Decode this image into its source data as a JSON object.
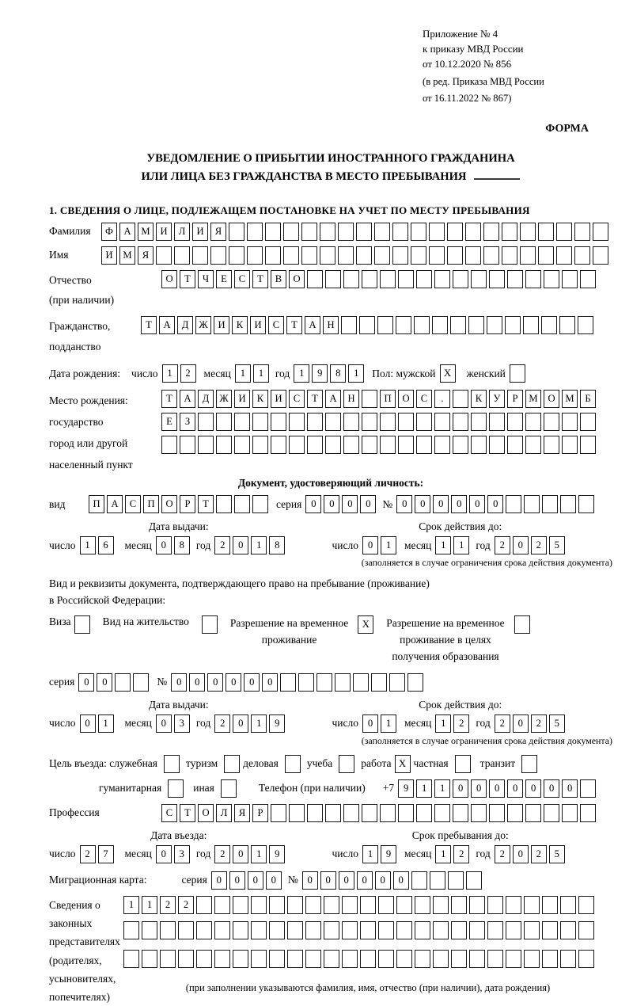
{
  "header": {
    "appendix_lines": [
      "Приложение № 4",
      "к приказу МВД России",
      "от 10.12.2020 № 856"
    ],
    "edition_lines": [
      "(в ред. Приказа МВД России",
      "от 16.11.2022 № 867)"
    ],
    "form_label": "ФОРМА"
  },
  "title": {
    "line1": "УВЕДОМЛЕНИЕ О ПРИБЫТИИ ИНОСТРАННОГО ГРАЖДАНИНА",
    "line2": "ИЛИ ЛИЦА БЕЗ ГРАЖДАНСТВА В МЕСТО ПРЕБЫВАНИЯ"
  },
  "section1_heading": "1. СВЕДЕНИЯ О ЛИЦЕ, ПОДЛЕЖАЩЕМ ПОСТАНОВКЕ НА УЧЕТ ПО МЕСТУ ПРЕБЫВАНИЯ",
  "labels": {
    "day": "число",
    "month": "месяц",
    "year": "год",
    "series": "серия",
    "number": "№",
    "issue_date": "Дата выдачи:",
    "valid_until": "Срок действия до:",
    "entry_date": "Дата въезда:",
    "stay_until": "Срок пребывания до:",
    "restriction_note": "(заполняется в случае ограничения срока действия документа)"
  },
  "person": {
    "surname": {
      "label": "Фамилия",
      "value": "ФАМИЛИЯ",
      "cells": 28
    },
    "given_name": {
      "label": "Имя",
      "value": "ИМЯ",
      "cells": 28
    },
    "patronymic": {
      "label": "Отчество",
      "label2": "(при наличии)",
      "value": "ОТЧЕСТВО",
      "cells": 24
    },
    "citizenship": {
      "label": "Гражданство,",
      "label2": "подданство",
      "value": "ТАДЖИКИСТАН",
      "cells": 25
    },
    "birth": {
      "label": "Дата рождения:",
      "day": {
        "value": "12",
        "cells": 2
      },
      "month": {
        "value": "11",
        "cells": 2
      },
      "year": {
        "value": "1981",
        "cells": 4
      }
    },
    "sex": {
      "label_male": "Пол: мужской",
      "male": {
        "value": "X",
        "cells": 1
      },
      "label_female": "женский",
      "female": {
        "value": "",
        "cells": 1
      }
    },
    "birthplace": {
      "labels": [
        "Место рождения:",
        "государство",
        "город или другой",
        "населенный пункт"
      ],
      "rows": {
        "r1": {
          "value": "ТАДЖИКИСТАН ПОС. КУРМОМБ",
          "cells": 24
        },
        "r2": {
          "value": "ЕЗ",
          "cells": 24
        },
        "r3": {
          "value": "",
          "cells": 24
        }
      }
    }
  },
  "identity_doc": {
    "heading": "Документ, удостоверяющий личность:",
    "kind": {
      "label": "вид",
      "value": "ПАСПОРТ",
      "cells": 10
    },
    "series": {
      "value": "0000",
      "cells": 4
    },
    "number": {
      "value": "000000",
      "cells": 11
    },
    "issue": {
      "day": {
        "value": "16",
        "cells": 2
      },
      "month": {
        "value": "08",
        "cells": 2
      },
      "year": {
        "value": "2018",
        "cells": 4
      }
    },
    "valid": {
      "day": {
        "value": "01",
        "cells": 2
      },
      "month": {
        "value": "11",
        "cells": 2
      },
      "year": {
        "value": "2025",
        "cells": 4
      }
    }
  },
  "stay_doc": {
    "intro1": "Вид и реквизиты документа, подтверждающего право на пребывание (проживание)",
    "intro2": "в Российской Федерации:",
    "visa": {
      "label": "Виза",
      "box": {
        "value": "",
        "cells": 1
      }
    },
    "residence": {
      "label": "Вид на жительство",
      "box": {
        "value": "",
        "cells": 1
      }
    },
    "temp_permit": {
      "label_l1": "Разрешение на временное",
      "label_l2": "проживание",
      "box": {
        "value": "X",
        "cells": 1
      }
    },
    "edu_permit": {
      "label_l1": "Разрешение на временное",
      "label_l2": "проживание в целях",
      "label_l3": "получения образования",
      "box": {
        "value": "",
        "cells": 1
      }
    },
    "series": {
      "value": "00",
      "cells": 4
    },
    "number": {
      "value": "000000",
      "cells": 14
    },
    "issue": {
      "day": {
        "value": "01",
        "cells": 2
      },
      "month": {
        "value": "03",
        "cells": 2
      },
      "year": {
        "value": "2019",
        "cells": 4
      }
    },
    "valid": {
      "day": {
        "value": "01",
        "cells": 2
      },
      "month": {
        "value": "12",
        "cells": 2
      },
      "year": {
        "value": "2025",
        "cells": 4
      }
    }
  },
  "visit": {
    "purpose_label": "Цель въезда: служебная",
    "official": {
      "value": "",
      "cells": 1
    },
    "tourism_label": "туризм",
    "tourism": {
      "value": "",
      "cells": 1
    },
    "business_label": "деловая",
    "business": {
      "value": "",
      "cells": 1
    },
    "study_label": "учеба",
    "study": {
      "value": "",
      "cells": 1
    },
    "work_label": "работа",
    "work": {
      "value": "X",
      "cells": 1
    },
    "private_label": "частная",
    "private": {
      "value": "",
      "cells": 1
    },
    "transit_label": "транзит",
    "transit": {
      "value": "",
      "cells": 1
    },
    "humanitarian_label": "гуманитарная",
    "humanitarian": {
      "value": "",
      "cells": 1
    },
    "other_label": "иная",
    "other": {
      "value": "",
      "cells": 1
    },
    "phone_label": "Телефон (при наличии)",
    "phone_prefix": "+7",
    "phone": {
      "value": "9110000000",
      "cells": 11
    },
    "profession": {
      "label": "Профессия",
      "value": "СТОЛЯР",
      "cells": 24
    },
    "entry": {
      "day": {
        "value": "27",
        "cells": 2
      },
      "month": {
        "value": "03",
        "cells": 2
      },
      "year": {
        "value": "2019",
        "cells": 4
      }
    },
    "stay": {
      "day": {
        "value": "19",
        "cells": 2
      },
      "month": {
        "value": "12",
        "cells": 2
      },
      "year": {
        "value": "2025",
        "cells": 4
      }
    }
  },
  "migration_card": {
    "label": "Миграционная карта:",
    "series": {
      "value": "0000",
      "cells": 4
    },
    "number": {
      "value": "000000",
      "cells": 10
    }
  },
  "representatives": {
    "labels": [
      "Сведения о",
      "законных",
      "представителях",
      "(родителях,",
      "усыновителях,",
      "попечителях)"
    ],
    "rows": {
      "r1": {
        "value": "1122",
        "cells": 26
      },
      "r2": {
        "value": "",
        "cells": 26
      },
      "r3": {
        "value": "",
        "cells": 26
      }
    },
    "note": "(при заполнении указываются фамилия, имя, отчество (при наличии), дата рождения)"
  }
}
